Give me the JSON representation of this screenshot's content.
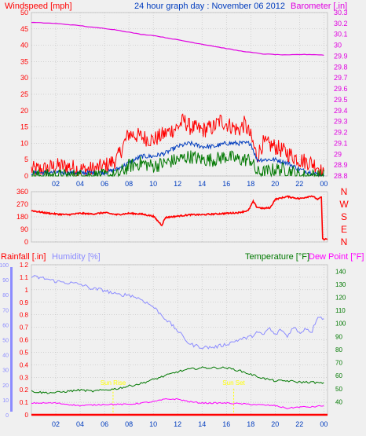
{
  "colors": {
    "wind_max": "#ff0000",
    "wind_avg": "#003cbe",
    "wind_min": "#007800",
    "barometer": "#e000e0",
    "direction": "#ff0000",
    "humidity": "#8c8cff",
    "temperature": "#007800",
    "dewpoint": "#ff00ff",
    "rain": "#ff0000",
    "sun": "#ffff00",
    "frame": "#c8c8c8",
    "plot_bg": "#f0f0f0",
    "grid": "#b4b4b4"
  },
  "chart_data": [
    {
      "type": "line",
      "title": "24 hour graph day : November 06 2012",
      "left_label": "Windspeed [mph]",
      "right_label": "Barometer [.in]",
      "x_tick_labels": [
        "02",
        "04",
        "06",
        "08",
        "10",
        "12",
        "14",
        "16",
        "18",
        "20",
        "22",
        "00"
      ],
      "x_hours": [
        2,
        4,
        6,
        8,
        10,
        12,
        14,
        16,
        18,
        20,
        22,
        24
      ],
      "xlim": [
        0,
        24.3
      ],
      "ylim": [
        0,
        50
      ],
      "y_ticks": [
        0,
        5,
        10,
        15,
        20,
        25,
        30,
        35,
        40,
        45,
        50
      ],
      "y2lim": [
        28.8,
        30.3
      ],
      "y2_ticks": [
        "28.8",
        "28.9",
        "29",
        "29.1",
        "29.2",
        "29.3",
        "29.4",
        "29.5",
        "29.6",
        "29.7",
        "29.8",
        "29.9",
        "30",
        "30.1",
        "30.2",
        "30.3"
      ],
      "series": [
        {
          "name": "wind_max",
          "axis": "left",
          "noise": 2.6,
          "x": [
            0,
            1,
            2,
            3,
            4,
            5,
            6,
            7,
            7.5,
            8,
            9,
            10,
            11,
            12,
            12.5,
            13,
            14,
            15,
            15.5,
            16,
            17,
            17.5,
            18,
            18.5,
            19,
            20,
            21,
            22,
            23,
            23.5,
            24
          ],
          "y": [
            2,
            2,
            3,
            3,
            2,
            2,
            3,
            5,
            9,
            13,
            12,
            11,
            13,
            15,
            17,
            15,
            14,
            15,
            17,
            16,
            14,
            16,
            12,
            6,
            10,
            9,
            7,
            5,
            4,
            3,
            0
          ]
        },
        {
          "name": "wind_avg",
          "axis": "left",
          "noise": 0.7,
          "x": [
            0,
            2,
            4,
            6,
            7,
            8,
            9,
            10,
            11,
            12,
            13,
            14,
            15,
            16,
            17,
            18,
            18.5,
            19,
            20,
            21,
            22,
            23,
            24
          ],
          "y": [
            1,
            1,
            1,
            1,
            2,
            4,
            6,
            6,
            7,
            9,
            10,
            9,
            9,
            10,
            10,
            10,
            5,
            5,
            5,
            4,
            2,
            1,
            0
          ]
        },
        {
          "name": "wind_min",
          "axis": "left",
          "noise": 2.2,
          "x": [
            0,
            2,
            4,
            6,
            7,
            8,
            9,
            10,
            11,
            12,
            13,
            14,
            15,
            16,
            17,
            18,
            18.5,
            19,
            20,
            21,
            22,
            23,
            24
          ],
          "y": [
            0,
            0,
            0,
            0,
            0,
            3,
            4,
            3,
            4,
            5,
            6,
            5,
            5,
            6,
            5,
            5,
            1,
            1,
            2,
            2,
            0,
            0,
            0
          ]
        },
        {
          "name": "barometer",
          "axis": "right",
          "noise": 0.002,
          "x": [
            0,
            1,
            2,
            3,
            4,
            5,
            6,
            7,
            8,
            9,
            10,
            11,
            12,
            13,
            14,
            15,
            16,
            17,
            18,
            19,
            20,
            21,
            22,
            23,
            24
          ],
          "y": [
            30.21,
            30.205,
            30.2,
            30.19,
            30.18,
            30.165,
            30.155,
            30.14,
            30.12,
            30.1,
            30.09,
            30.07,
            30.05,
            30.03,
            30.01,
            29.99,
            29.97,
            29.95,
            29.935,
            29.92,
            29.915,
            29.91,
            29.915,
            29.915,
            29.91
          ]
        }
      ]
    },
    {
      "type": "line",
      "ylim": [
        0,
        360
      ],
      "y_ticks": [
        0,
        90,
        180,
        270,
        360
      ],
      "y_tick_labels": [
        "0",
        "90",
        "180",
        "270",
        "360"
      ],
      "compass_labels": [
        "N",
        "W",
        "S",
        "E",
        "N"
      ],
      "series": [
        {
          "name": "direction",
          "noise": 5,
          "x": [
            0,
            1,
            2,
            3,
            4,
            5,
            6,
            7,
            8,
            9,
            10,
            10.7,
            11,
            12,
            13,
            14,
            15,
            16,
            17,
            17.8,
            18.2,
            18.5,
            19,
            19.6,
            20,
            21,
            22,
            23,
            23.5,
            23.8,
            23.9,
            24.3
          ],
          "y": [
            225,
            210,
            200,
            195,
            205,
            200,
            210,
            195,
            205,
            200,
            185,
            120,
            175,
            185,
            195,
            195,
            200,
            205,
            210,
            225,
            290,
            250,
            240,
            245,
            305,
            325,
            310,
            330,
            305,
            320,
            20,
            20
          ]
        }
      ]
    },
    {
      "type": "line",
      "left_label": "Rainfall [.in]",
      "mid_label": "Humidity [%]",
      "right_label": "Temperature [°F]",
      "right2_label": "Dew Point [°F]",
      "rain_ylim": [
        0,
        1.2
      ],
      "rain_ticks": [
        "0",
        "0.1",
        "0.2",
        "0.3",
        "0.4",
        "0.5",
        "0.6",
        "0.7",
        "0.8",
        "0.9",
        "1",
        "1.1",
        "1.2"
      ],
      "humidity_ylim": [
        0,
        100
      ],
      "humidity_ticks": [
        "0",
        "10",
        "20",
        "30",
        "40",
        "50",
        "60",
        "70",
        "80",
        "90",
        "100"
      ],
      "temp_ylim": [
        30,
        145
      ],
      "temp_ticks": [
        "40",
        "50",
        "60",
        "70",
        "80",
        "90",
        "100",
        "110",
        "120",
        "130",
        "140"
      ],
      "annotations": [
        {
          "text": "Sun Rise",
          "x": 6.7
        },
        {
          "text": "Sun Set",
          "x": 16.6
        }
      ],
      "series": [
        {
          "name": "humidity",
          "axis": "humidity",
          "noise": 1.2,
          "x": [
            0,
            1,
            2,
            3,
            4,
            5,
            6,
            7,
            8,
            9,
            10,
            11,
            12,
            13,
            14,
            15,
            16,
            17,
            18,
            18.5,
            19,
            19.5,
            20,
            20.5,
            21,
            21.5,
            22,
            22.5,
            23,
            23.5,
            24
          ],
          "y": [
            92,
            91,
            89,
            88,
            87,
            84,
            83,
            80,
            80,
            77,
            72,
            64,
            56,
            47,
            45,
            45,
            47,
            50,
            52,
            55,
            53,
            58,
            53,
            57,
            52,
            59,
            54,
            58,
            55,
            66,
            64
          ]
        },
        {
          "name": "temperature",
          "axis": "temp",
          "noise": 0.8,
          "x": [
            0,
            1,
            2,
            3,
            4,
            5,
            6,
            7,
            8,
            9,
            10,
            11,
            12,
            13,
            14,
            15,
            16,
            17,
            18,
            19,
            20,
            21,
            22,
            23,
            24
          ],
          "y": [
            48,
            47,
            47,
            48,
            49,
            48,
            49,
            50,
            52,
            54,
            57,
            60,
            63,
            65,
            66,
            66,
            66,
            64,
            61,
            58,
            56,
            56,
            55,
            55,
            54
          ]
        },
        {
          "name": "dewpoint",
          "axis": "temp",
          "noise": 0.5,
          "x": [
            0,
            2,
            4,
            6,
            8,
            10,
            11,
            12,
            13,
            14,
            16,
            18,
            20,
            21,
            22,
            23,
            24
          ],
          "y": [
            39,
            39,
            37,
            38,
            38,
            40,
            42,
            42,
            40,
            39,
            39,
            38,
            37,
            35,
            36,
            36,
            37
          ]
        },
        {
          "name": "rainfall",
          "axis": "rain",
          "noise": 0,
          "x": [
            0,
            24.3
          ],
          "y": [
            0,
            0
          ]
        }
      ]
    }
  ]
}
